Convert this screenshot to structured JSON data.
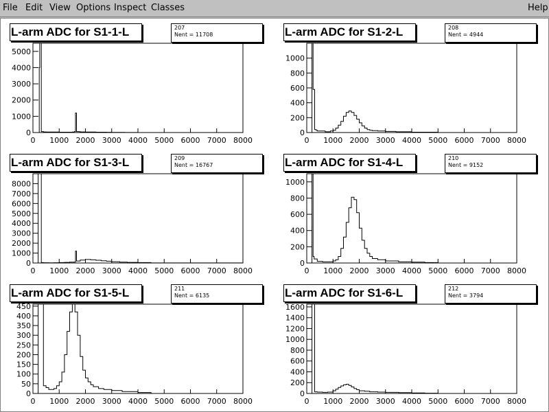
{
  "menu": {
    "file": "File",
    "edit": "Edit",
    "view": "View",
    "options": "Options",
    "inspect": "Inspect",
    "classes": "Classes",
    "help": "Help"
  },
  "colors": {
    "background": "#c0c0c0",
    "canvas": "#ffffff",
    "line": "#000000"
  },
  "chart_data": [
    {
      "type": "bar",
      "title": "L-arm ADC for S1-1-L",
      "stats_id": "207",
      "stats_label": "Nent = 11708",
      "xlim": [
        0,
        8000
      ],
      "ylim": [
        0,
        5500
      ],
      "xticks": [
        0,
        1000,
        2000,
        3000,
        4000,
        5000,
        6000,
        7000,
        8000
      ],
      "yticks": [
        0,
        1000,
        2000,
        3000,
        4000,
        5000
      ],
      "x": [
        0,
        200,
        240,
        260,
        300,
        320,
        400,
        500,
        1000,
        1500,
        1580,
        1620,
        1660,
        1740,
        1800,
        1900,
        2000,
        2200,
        2400,
        2600,
        2800,
        3000,
        3500,
        4000,
        8000
      ],
      "y": [
        0,
        0,
        4000,
        5500,
        5500,
        60,
        40,
        30,
        20,
        30,
        60,
        1200,
        60,
        50,
        40,
        40,
        30,
        30,
        20,
        20,
        15,
        10,
        5,
        0,
        0
      ]
    },
    {
      "type": "bar",
      "title": "L-arm ADC for S1-2-L",
      "stats_id": "208",
      "stats_label": "Nent = 4944",
      "xlim": [
        0,
        8000
      ],
      "ylim": [
        0,
        1200
      ],
      "xticks": [
        0,
        1000,
        2000,
        3000,
        4000,
        5000,
        6000,
        7000,
        8000
      ],
      "yticks": [
        0,
        200,
        400,
        600,
        800,
        1000
      ],
      "x": [
        0,
        200,
        240,
        300,
        360,
        400,
        500,
        700,
        900,
        1000,
        1100,
        1200,
        1300,
        1400,
        1500,
        1600,
        1700,
        1800,
        1900,
        2000,
        2100,
        2200,
        2300,
        2400,
        2500,
        2700,
        3000,
        3400,
        4000,
        4500,
        5000,
        8000
      ],
      "y": [
        0,
        1200,
        580,
        40,
        30,
        20,
        20,
        10,
        20,
        30,
        60,
        100,
        150,
        220,
        270,
        290,
        270,
        230,
        180,
        130,
        90,
        60,
        40,
        30,
        25,
        20,
        15,
        10,
        5,
        5,
        0,
        0
      ]
    },
    {
      "type": "bar",
      "title": "L-arm ADC for S1-3-L",
      "stats_id": "209",
      "stats_label": "Nent = 16767",
      "xlim": [
        0,
        8000
      ],
      "ylim": [
        0,
        9000
      ],
      "xticks": [
        0,
        1000,
        2000,
        3000,
        4000,
        5000,
        6000,
        7000,
        8000
      ],
      "yticks": [
        0,
        1000,
        2000,
        3000,
        4000,
        5000,
        6000,
        7000,
        8000
      ],
      "x": [
        0,
        200,
        240,
        300,
        320,
        400,
        600,
        800,
        1000,
        1200,
        1400,
        1580,
        1620,
        1660,
        1800,
        2000,
        2200,
        2400,
        2600,
        2800,
        3000,
        3300,
        3600,
        4000,
        4500,
        8000
      ],
      "y": [
        0,
        9000,
        9000,
        9000,
        40,
        30,
        20,
        30,
        40,
        60,
        80,
        100,
        1200,
        200,
        300,
        350,
        320,
        280,
        220,
        180,
        130,
        90,
        60,
        40,
        10,
        0
      ]
    },
    {
      "type": "bar",
      "title": "L-arm ADC for S1-4-L",
      "stats_id": "210",
      "stats_label": "Nent = 9152",
      "xlim": [
        0,
        8000
      ],
      "ylim": [
        0,
        1100
      ],
      "xticks": [
        0,
        1000,
        2000,
        3000,
        4000,
        5000,
        6000,
        7000,
        8000
      ],
      "yticks": [
        0,
        200,
        400,
        600,
        800,
        1000
      ],
      "x": [
        0,
        200,
        240,
        280,
        400,
        600,
        800,
        1000,
        1100,
        1200,
        1300,
        1400,
        1500,
        1600,
        1700,
        1800,
        1900,
        2000,
        2100,
        2200,
        2300,
        2400,
        2500,
        2700,
        3000,
        3500,
        4000,
        4500,
        5000,
        8000
      ],
      "y": [
        0,
        1100,
        80,
        50,
        20,
        15,
        15,
        25,
        40,
        80,
        180,
        320,
        500,
        680,
        810,
        780,
        620,
        430,
        280,
        180,
        120,
        80,
        55,
        40,
        25,
        15,
        10,
        5,
        0,
        0
      ]
    },
    {
      "type": "bar",
      "title": "L-arm ADC for S1-5-L",
      "stats_id": "211",
      "stats_label": "Nent = 6135",
      "xlim": [
        0,
        8000
      ],
      "ylim": [
        0,
        460
      ],
      "xticks": [
        0,
        1000,
        2000,
        3000,
        4000,
        5000,
        6000,
        7000,
        8000
      ],
      "yticks": [
        0,
        50,
        100,
        150,
        200,
        250,
        300,
        350,
        400,
        450
      ],
      "x": [
        0,
        200,
        240,
        300,
        400,
        500,
        600,
        700,
        800,
        900,
        1000,
        1100,
        1200,
        1300,
        1400,
        1500,
        1600,
        1700,
        1800,
        1900,
        2000,
        2100,
        2200,
        2300,
        2500,
        2700,
        3000,
        3400,
        4000,
        4500,
        8000
      ],
      "y": [
        0,
        460,
        460,
        460,
        40,
        30,
        20,
        20,
        25,
        40,
        60,
        110,
        200,
        320,
        420,
        460,
        420,
        300,
        190,
        120,
        80,
        60,
        45,
        35,
        25,
        20,
        15,
        10,
        5,
        0,
        0
      ]
    },
    {
      "type": "bar",
      "title": "L-arm ADC for S1-6-L",
      "stats_id": "212",
      "stats_label": "Nent = 3794",
      "xlim": [
        0,
        8000
      ],
      "ylim": [
        0,
        1650
      ],
      "xticks": [
        0,
        1000,
        2000,
        3000,
        4000,
        5000,
        6000,
        7000,
        8000
      ],
      "yticks": [
        0,
        200,
        400,
        600,
        800,
        1000,
        1200,
        1400,
        1600
      ],
      "x": [
        0,
        200,
        240,
        300,
        400,
        600,
        800,
        1000,
        1100,
        1200,
        1300,
        1400,
        1500,
        1600,
        1700,
        1800,
        1900,
        2000,
        2200,
        2400,
        2700,
        3000,
        3500,
        4000,
        4500,
        5000,
        8000
      ],
      "y": [
        0,
        1650,
        1650,
        30,
        25,
        20,
        25,
        50,
        80,
        110,
        140,
        160,
        170,
        150,
        120,
        90,
        70,
        50,
        40,
        30,
        25,
        20,
        15,
        10,
        5,
        0,
        0
      ]
    }
  ]
}
